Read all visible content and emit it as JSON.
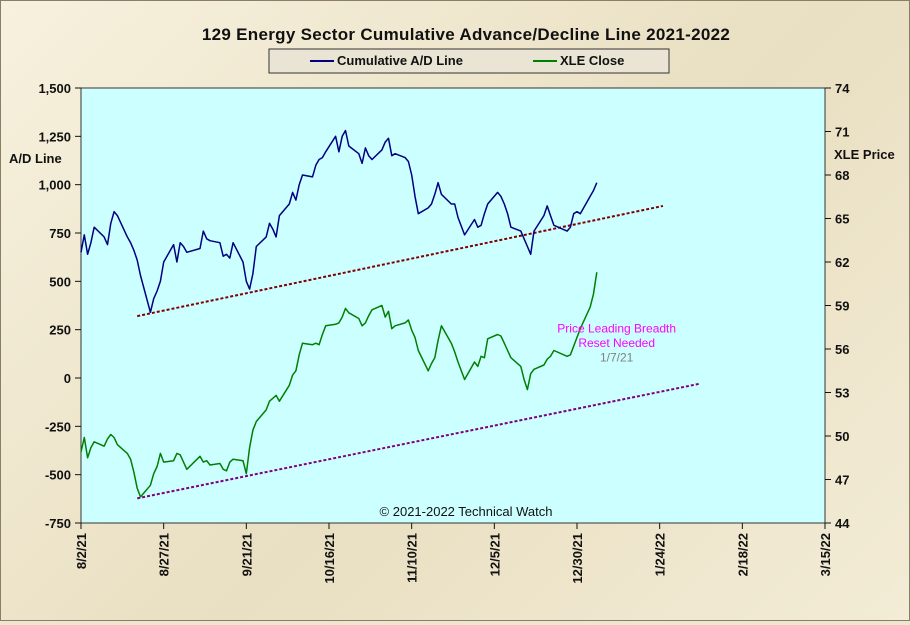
{
  "chart_data": {
    "type": "line",
    "title": "129 Energy Sector Cumulative Advance/Decline Line 2021-2022",
    "ylabel_left": "A/D Line",
    "ylabel_right": "XLE Price",
    "ylim_left": [
      -750,
      1500
    ],
    "ylim_right": [
      44,
      74
    ],
    "yticks_left": [
      -750,
      -500,
      -250,
      0,
      250,
      500,
      750,
      1000,
      1250,
      1500
    ],
    "yticks_left_labels": [
      "-750",
      "-500",
      "-250",
      "0",
      "250",
      "500",
      "750",
      "1,000",
      "1,250",
      "1,500"
    ],
    "yticks_right": [
      44,
      47,
      50,
      53,
      56,
      59,
      62,
      65,
      68,
      71,
      74
    ],
    "x_range": [
      "2021-08-02",
      "2022-03-15"
    ],
    "x_ticks": [
      "2021-08-02",
      "2021-08-27",
      "2021-09-21",
      "2021-10-16",
      "2021-11-10",
      "2021-12-05",
      "2021-12-30",
      "2022-01-24",
      "2022-02-18",
      "2022-03-15"
    ],
    "x_tick_labels": [
      "8/2/21",
      "8/27/21",
      "9/21/21",
      "10/16/21",
      "11/10/21",
      "12/5/21",
      "12/30/21",
      "1/24/22",
      "2/18/22",
      "3/15/22"
    ],
    "legend": {
      "placement": "top-center"
    },
    "grid": false,
    "colors": {
      "plot_bg": "#ccffff",
      "ad_line": "#000080",
      "xle_line": "#008000",
      "trend_ad": "#800000",
      "trend_xle": "#800080",
      "annotation": "#ff00ff",
      "annotation_date": "#808080"
    },
    "series": [
      {
        "name": "Cumulative A/D Line",
        "axis": "left",
        "points": [
          [
            "2021-08-02",
            650
          ],
          [
            "2021-08-03",
            740
          ],
          [
            "2021-08-04",
            640
          ],
          [
            "2021-08-05",
            700
          ],
          [
            "2021-08-06",
            780
          ],
          [
            "2021-08-09",
            730
          ],
          [
            "2021-08-10",
            690
          ],
          [
            "2021-08-11",
            800
          ],
          [
            "2021-08-12",
            860
          ],
          [
            "2021-08-13",
            840
          ],
          [
            "2021-08-16",
            730
          ],
          [
            "2021-08-17",
            700
          ],
          [
            "2021-08-18",
            660
          ],
          [
            "2021-08-19",
            610
          ],
          [
            "2021-08-20",
            530
          ],
          [
            "2021-08-23",
            340
          ],
          [
            "2021-08-24",
            410
          ],
          [
            "2021-08-25",
            450
          ],
          [
            "2021-08-26",
            500
          ],
          [
            "2021-08-27",
            600
          ],
          [
            "2021-08-30",
            690
          ],
          [
            "2021-08-31",
            600
          ],
          [
            "2021-09-01",
            700
          ],
          [
            "2021-09-02",
            680
          ],
          [
            "2021-09-03",
            650
          ],
          [
            "2021-09-07",
            670
          ],
          [
            "2021-09-08",
            760
          ],
          [
            "2021-09-09",
            720
          ],
          [
            "2021-09-10",
            710
          ],
          [
            "2021-09-13",
            700
          ],
          [
            "2021-09-14",
            630
          ],
          [
            "2021-09-15",
            640
          ],
          [
            "2021-09-16",
            620
          ],
          [
            "2021-09-17",
            700
          ],
          [
            "2021-09-20",
            600
          ],
          [
            "2021-09-21",
            500
          ],
          [
            "2021-09-22",
            460
          ],
          [
            "2021-09-23",
            540
          ],
          [
            "2021-09-24",
            680
          ],
          [
            "2021-09-27",
            730
          ],
          [
            "2021-09-28",
            800
          ],
          [
            "2021-09-29",
            770
          ],
          [
            "2021-09-30",
            730
          ],
          [
            "2021-10-01",
            840
          ],
          [
            "2021-10-04",
            900
          ],
          [
            "2021-10-05",
            960
          ],
          [
            "2021-10-06",
            920
          ],
          [
            "2021-10-07",
            1000
          ],
          [
            "2021-10-08",
            1050
          ],
          [
            "2021-10-11",
            1040
          ],
          [
            "2021-10-12",
            1100
          ],
          [
            "2021-10-13",
            1130
          ],
          [
            "2021-10-14",
            1140
          ],
          [
            "2021-10-15",
            1170
          ],
          [
            "2021-10-18",
            1250
          ],
          [
            "2021-10-19",
            1170
          ],
          [
            "2021-10-20",
            1250
          ],
          [
            "2021-10-21",
            1280
          ],
          [
            "2021-10-22",
            1200
          ],
          [
            "2021-10-25",
            1160
          ],
          [
            "2021-10-26",
            1110
          ],
          [
            "2021-10-27",
            1190
          ],
          [
            "2021-10-28",
            1150
          ],
          [
            "2021-10-29",
            1130
          ],
          [
            "2021-11-01",
            1180
          ],
          [
            "2021-11-02",
            1220
          ],
          [
            "2021-11-03",
            1240
          ],
          [
            "2021-11-04",
            1150
          ],
          [
            "2021-11-05",
            1160
          ],
          [
            "2021-11-08",
            1140
          ],
          [
            "2021-11-09",
            1120
          ],
          [
            "2021-11-10",
            1050
          ],
          [
            "2021-11-11",
            940
          ],
          [
            "2021-11-12",
            850
          ],
          [
            "2021-11-15",
            880
          ],
          [
            "2021-11-16",
            900
          ],
          [
            "2021-11-17",
            950
          ],
          [
            "2021-11-18",
            1010
          ],
          [
            "2021-11-19",
            950
          ],
          [
            "2021-11-22",
            900
          ],
          [
            "2021-11-23",
            900
          ],
          [
            "2021-11-24",
            830
          ],
          [
            "2021-11-26",
            740
          ],
          [
            "2021-11-29",
            820
          ],
          [
            "2021-11-30",
            780
          ],
          [
            "2021-12-01",
            790
          ],
          [
            "2021-12-02",
            850
          ],
          [
            "2021-12-03",
            900
          ],
          [
            "2021-12-06",
            960
          ],
          [
            "2021-12-07",
            940
          ],
          [
            "2021-12-08",
            900
          ],
          [
            "2021-12-09",
            850
          ],
          [
            "2021-12-10",
            780
          ],
          [
            "2021-12-13",
            760
          ],
          [
            "2021-12-14",
            720
          ],
          [
            "2021-12-15",
            680
          ],
          [
            "2021-12-16",
            640
          ],
          [
            "2021-12-17",
            760
          ],
          [
            "2021-12-20",
            840
          ],
          [
            "2021-12-21",
            890
          ],
          [
            "2021-12-22",
            840
          ],
          [
            "2021-12-23",
            790
          ],
          [
            "2021-12-27",
            760
          ],
          [
            "2021-12-28",
            780
          ],
          [
            "2021-12-29",
            850
          ],
          [
            "2021-12-30",
            860
          ],
          [
            "2021-12-31",
            850
          ],
          [
            "2022-01-03",
            940
          ],
          [
            "2022-01-04",
            970
          ],
          [
            "2022-01-05",
            1010
          ]
        ]
      },
      {
        "name": "XLE Close",
        "axis": "right",
        "points": [
          [
            "2021-08-02",
            48.9
          ],
          [
            "2021-08-03",
            49.9
          ],
          [
            "2021-08-04",
            48.5
          ],
          [
            "2021-08-05",
            49.2
          ],
          [
            "2021-08-06",
            49.6
          ],
          [
            "2021-08-09",
            49.3
          ],
          [
            "2021-08-10",
            49.8
          ],
          [
            "2021-08-11",
            50.1
          ],
          [
            "2021-08-12",
            49.9
          ],
          [
            "2021-08-13",
            49.4
          ],
          [
            "2021-08-16",
            48.8
          ],
          [
            "2021-08-17",
            48.4
          ],
          [
            "2021-08-18",
            47.5
          ],
          [
            "2021-08-19",
            46.4
          ],
          [
            "2021-08-20",
            45.8
          ],
          [
            "2021-08-23",
            46.6
          ],
          [
            "2021-08-24",
            47.4
          ],
          [
            "2021-08-25",
            47.9
          ],
          [
            "2021-08-26",
            48.8
          ],
          [
            "2021-08-27",
            48.2
          ],
          [
            "2021-08-30",
            48.3
          ],
          [
            "2021-08-31",
            48.8
          ],
          [
            "2021-09-01",
            48.7
          ],
          [
            "2021-09-02",
            48.2
          ],
          [
            "2021-09-03",
            47.7
          ],
          [
            "2021-09-07",
            48.6
          ],
          [
            "2021-09-08",
            48.2
          ],
          [
            "2021-09-09",
            48.3
          ],
          [
            "2021-09-10",
            48.0
          ],
          [
            "2021-09-13",
            48.1
          ],
          [
            "2021-09-14",
            47.7
          ],
          [
            "2021-09-15",
            47.6
          ],
          [
            "2021-09-16",
            48.2
          ],
          [
            "2021-09-17",
            48.4
          ],
          [
            "2021-09-20",
            48.3
          ],
          [
            "2021-09-21",
            47.4
          ],
          [
            "2021-09-22",
            49.2
          ],
          [
            "2021-09-23",
            50.4
          ],
          [
            "2021-09-24",
            51.0
          ],
          [
            "2021-09-27",
            51.8
          ],
          [
            "2021-09-28",
            52.4
          ],
          [
            "2021-09-29",
            52.6
          ],
          [
            "2021-09-30",
            52.8
          ],
          [
            "2021-10-01",
            52.4
          ],
          [
            "2021-10-04",
            53.5
          ],
          [
            "2021-10-05",
            54.2
          ],
          [
            "2021-10-06",
            54.5
          ],
          [
            "2021-10-07",
            55.6
          ],
          [
            "2021-10-08",
            56.4
          ],
          [
            "2021-10-11",
            56.3
          ],
          [
            "2021-10-12",
            56.4
          ],
          [
            "2021-10-13",
            56.3
          ],
          [
            "2021-10-14",
            57.0
          ],
          [
            "2021-10-15",
            57.6
          ],
          [
            "2021-10-18",
            57.7
          ],
          [
            "2021-10-19",
            57.8
          ],
          [
            "2021-10-20",
            58.2
          ],
          [
            "2021-10-21",
            58.8
          ],
          [
            "2021-10-22",
            58.5
          ],
          [
            "2021-10-25",
            58.1
          ],
          [
            "2021-10-26",
            57.6
          ],
          [
            "2021-10-27",
            57.8
          ],
          [
            "2021-10-28",
            58.3
          ],
          [
            "2021-10-29",
            58.7
          ],
          [
            "2021-11-01",
            59.0
          ],
          [
            "2021-11-02",
            58.2
          ],
          [
            "2021-11-03",
            58.6
          ],
          [
            "2021-11-04",
            57.4
          ],
          [
            "2021-11-05",
            57.6
          ],
          [
            "2021-11-08",
            57.8
          ],
          [
            "2021-11-09",
            58.0
          ],
          [
            "2021-11-10",
            57.3
          ],
          [
            "2021-11-11",
            56.8
          ],
          [
            "2021-11-12",
            55.9
          ],
          [
            "2021-11-15",
            54.5
          ],
          [
            "2021-11-16",
            55.0
          ],
          [
            "2021-11-17",
            55.4
          ],
          [
            "2021-11-18",
            56.6
          ],
          [
            "2021-11-19",
            57.6
          ],
          [
            "2021-11-22",
            56.4
          ],
          [
            "2021-11-23",
            55.8
          ],
          [
            "2021-11-24",
            55.1
          ],
          [
            "2021-11-26",
            53.9
          ],
          [
            "2021-11-29",
            55.1
          ],
          [
            "2021-11-30",
            54.8
          ],
          [
            "2021-12-01",
            55.5
          ],
          [
            "2021-12-02",
            55.4
          ],
          [
            "2021-12-03",
            56.7
          ],
          [
            "2021-12-06",
            57.0
          ],
          [
            "2021-12-07",
            56.9
          ],
          [
            "2021-12-08",
            56.4
          ],
          [
            "2021-12-09",
            55.9
          ],
          [
            "2021-12-10",
            55.4
          ],
          [
            "2021-12-13",
            54.8
          ],
          [
            "2021-12-14",
            53.9
          ],
          [
            "2021-12-15",
            53.2
          ],
          [
            "2021-12-16",
            54.3
          ],
          [
            "2021-12-17",
            54.6
          ],
          [
            "2021-12-20",
            54.9
          ],
          [
            "2021-12-21",
            55.3
          ],
          [
            "2021-12-22",
            55.5
          ],
          [
            "2021-12-23",
            55.9
          ],
          [
            "2021-12-27",
            55.5
          ],
          [
            "2021-12-28",
            55.6
          ],
          [
            "2021-12-29",
            56.2
          ],
          [
            "2021-12-30",
            56.8
          ],
          [
            "2021-12-31",
            57.4
          ],
          [
            "2022-01-03",
            58.9
          ],
          [
            "2022-01-04",
            59.8
          ],
          [
            "2022-01-05",
            61.3
          ]
        ]
      }
    ],
    "trendlines": [
      {
        "axis": "left",
        "from": [
          "2021-08-19",
          320
        ],
        "to": [
          "2022-01-25",
          890
        ]
      },
      {
        "axis": "right",
        "from": [
          "2021-08-19",
          45.7
        ],
        "to": [
          "2022-02-05",
          53.6
        ]
      }
    ],
    "annotations": [
      {
        "text": "Price Leading  Breadth",
        "x": "2022-01-11",
        "y": 57.4,
        "axis": "right",
        "color": "#ff00ff"
      },
      {
        "text": "Reset Needed",
        "x": "2022-01-11",
        "y": 56.4,
        "axis": "right",
        "color": "#ff00ff"
      },
      {
        "text": "1/7/21",
        "x": "2022-01-11",
        "y": 55.4,
        "axis": "right",
        "color": "#808080"
      }
    ],
    "copyright": "© 2021-2022  Technical Watch"
  }
}
